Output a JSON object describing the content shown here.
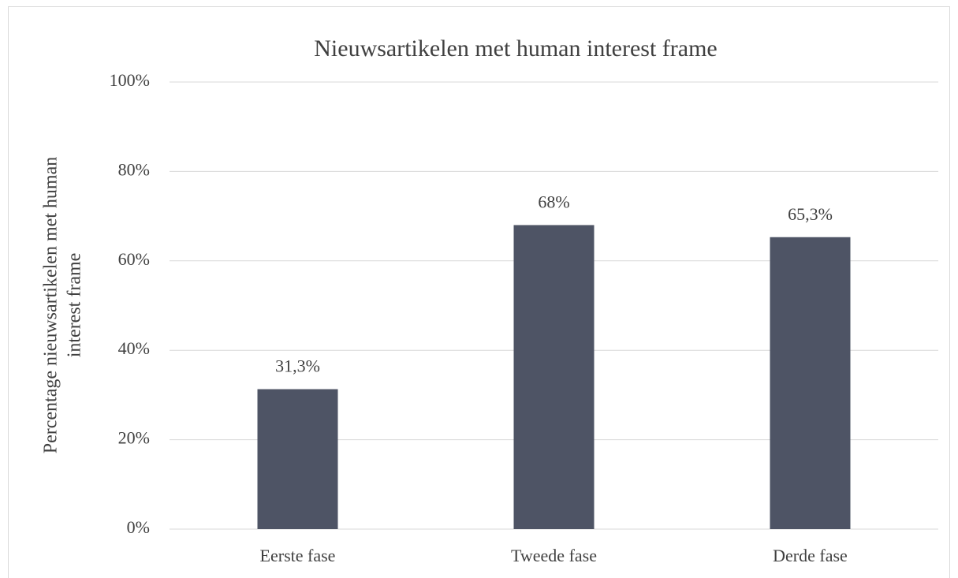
{
  "chart_data": {
    "type": "bar",
    "title": "Nieuwsartikelen met human interest frame",
    "y_label": [
      "Percentage nieuwsartikelen met human",
      "interest frame"
    ],
    "categories": [
      "Eerste fase",
      "Tweede fase",
      "Derde fase"
    ],
    "values": [
      31.3,
      68,
      65.3
    ],
    "value_labels": [
      "31,3%",
      "68%",
      "65,3%"
    ],
    "color": "#4e5465",
    "ylim": [
      0,
      100
    ],
    "yticks": [
      {
        "value": 0,
        "label": "0%"
      },
      {
        "value": 20,
        "label": "20%"
      },
      {
        "value": 40,
        "label": "40%"
      },
      {
        "value": 60,
        "label": "60%"
      },
      {
        "value": 80,
        "label": "80%"
      },
      {
        "value": 100,
        "label": "100%"
      }
    ],
    "grid": true
  }
}
